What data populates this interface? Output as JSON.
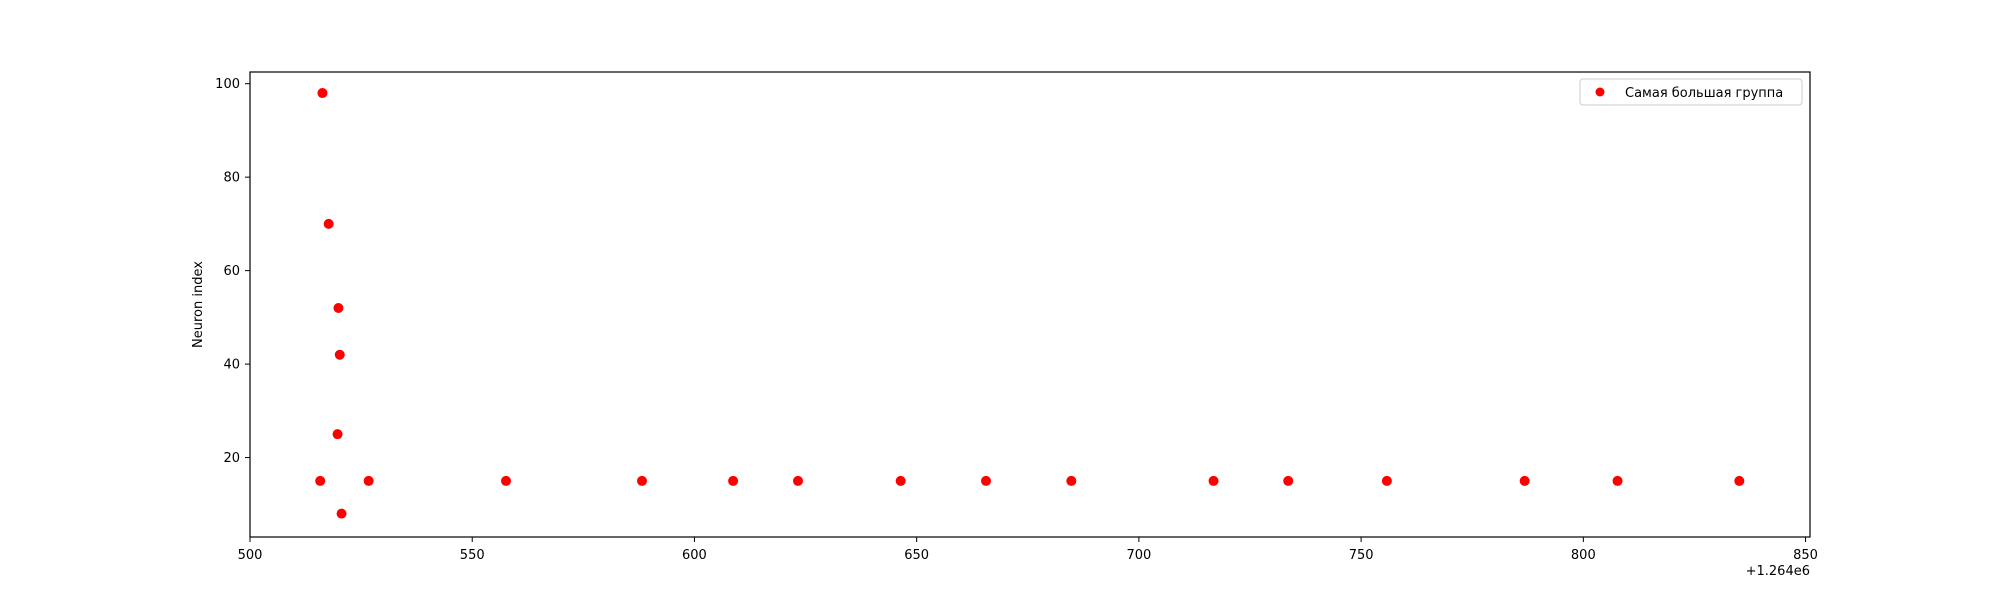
{
  "chart_data": {
    "type": "scatter",
    "title": "",
    "xlabel": "",
    "ylabel": "Neuron index",
    "x_offset_label": "+1.264e6",
    "xlim": [
      1264500,
      1264851
    ],
    "ylim": [
      3,
      102.5
    ],
    "x_ticks": [
      1264500,
      1264550,
      1264600,
      1264650,
      1264700,
      1264750,
      1264800,
      1264850
    ],
    "x_tick_labels": [
      "500",
      "550",
      "600",
      "650",
      "700",
      "750",
      "800",
      "850"
    ],
    "y_ticks": [
      20,
      40,
      60,
      80,
      100
    ],
    "y_tick_labels": [
      "20",
      "40",
      "60",
      "80",
      "100"
    ],
    "grid": false,
    "legend_position": "top-right",
    "series": [
      {
        "name": "Самая большая группа",
        "color": "#ff0000",
        "marker": "circle",
        "x": [
          1264516.3,
          1264517.7,
          1264519.9,
          1264520.2,
          1264519.7,
          1264515.8,
          1264520.6,
          1264526.7,
          1264557.6,
          1264588.2,
          1264608.7,
          1264623.3,
          1264646.4,
          1264665.6,
          1264684.8,
          1264716.8,
          1264733.6,
          1264755.8,
          1264786.8,
          1264807.7,
          1264835.1
        ],
        "y": [
          98,
          70,
          52,
          42,
          25,
          15,
          8,
          15,
          15,
          15,
          15,
          15,
          15,
          15,
          15,
          15,
          15,
          15,
          15,
          15,
          15
        ]
      }
    ]
  }
}
